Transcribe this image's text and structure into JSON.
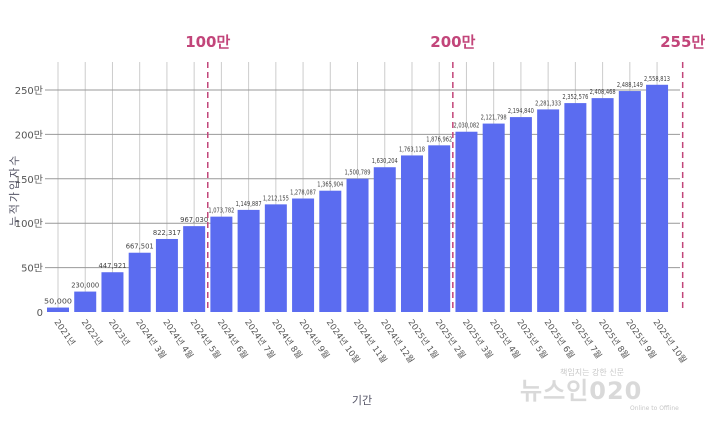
{
  "chart_data": {
    "type": "bar",
    "xlabel": "기간",
    "ylabel": "누적가입자수",
    "ylim": [
      0,
      2750000
    ],
    "yticks": [
      {
        "v": 0,
        "label": "0"
      },
      {
        "v": 500000,
        "label": "50만"
      },
      {
        "v": 1000000,
        "label": "100만"
      },
      {
        "v": 1500000,
        "label": "150만"
      },
      {
        "v": 2000000,
        "label": "200만"
      },
      {
        "v": 2500000,
        "label": "250만"
      }
    ],
    "grid": true,
    "color": "#5b6cf0",
    "categories": [
      "2021년",
      "2022년",
      "2023년",
      "2024년 3월",
      "2024년 4월",
      "2024년 5월",
      "2024년 6월",
      "2024년 7월",
      "2024년 8월",
      "2024년 9월",
      "2024년 10월",
      "2024년 11월",
      "2024년 12월",
      "2025년 1월",
      "2025년 2월",
      "2025년 3월",
      "2025년 4월",
      "2025년 5월",
      "2025년 6월",
      "2025년 7월",
      "2025년 8월",
      "2025년 9월",
      "2025년 10월"
    ],
    "values": [
      50000,
      230000,
      447921,
      667501,
      822317,
      967030,
      1073782,
      1149887,
      1212155,
      1278087,
      1365904,
      1500789,
      1630204,
      1763118,
      1876962,
      2030082,
      2121798,
      2194840,
      2281333,
      2352576,
      2408468,
      2488149,
      2558813
    ],
    "data_labels": [
      "50,000",
      "230,000",
      "447,921",
      "667,501",
      "822,317",
      "967,030",
      "1,073,782",
      "1,149,887",
      "1,212,155",
      "1,278,087",
      "1,365,904",
      "1,500,789",
      "1,630,204",
      "1,763,118",
      "1,876,962",
      "2,030,082",
      "2,121,798",
      "2,194,840",
      "2,281,333",
      "2,352,576",
      "2,408,468",
      "2,488,149",
      "2,558,813"
    ],
    "milestones": [
      {
        "label": "100만",
        "after_index": 5
      },
      {
        "label": "200만",
        "after_index": 14
      },
      {
        "label": "255만",
        "after_index": 22
      }
    ],
    "milestone_color": "#c2457a"
  },
  "watermark": {
    "name": "뉴스인020",
    "tagline": "책임지는 강한 신문",
    "sub": "Online to Offline"
  }
}
